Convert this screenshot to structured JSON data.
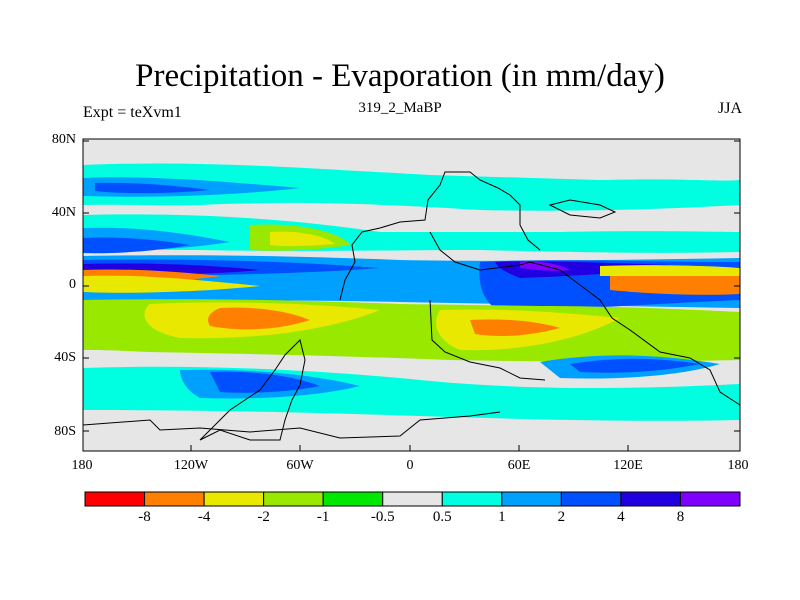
{
  "title": "Precipitation - Evaporation (in mm/day)",
  "expt_label": "Expt = teXvm1",
  "subtitle": "319_2_MaBP",
  "season": "JJA",
  "lat_ticks": [
    "80N",
    "40N",
    "0",
    "40S",
    "80S"
  ],
  "lon_ticks": [
    "180",
    "120W",
    "60W",
    "0",
    "60E",
    "120E",
    "180"
  ],
  "colorbar": {
    "colors": [
      "#ff0000",
      "#ff8000",
      "#e8e800",
      "#98e800",
      "#00e800",
      "#e6e6e6",
      "#00ffe0",
      "#00a0ff",
      "#0050ff",
      "#2000e0",
      "#8000ff"
    ],
    "labels": [
      "-8",
      "-4",
      "-2",
      "-1",
      "-0.5",
      "0.5",
      "1",
      "2",
      "4",
      "8"
    ]
  },
  "map_colors": {
    "neutral": "#e6e6e6",
    "cyan": "#00ffe0",
    "lightblue": "#00a0ff",
    "blue": "#0050ff",
    "darkblue": "#2000e0",
    "purple": "#8000ff",
    "green": "#00e800",
    "lime": "#98e800",
    "yellow": "#e8e800",
    "orange": "#ff8000"
  }
}
